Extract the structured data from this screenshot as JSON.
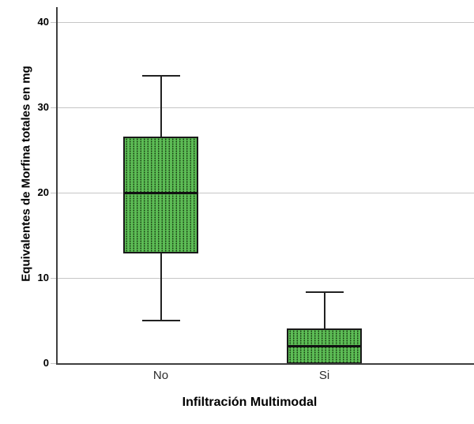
{
  "chart_data": {
    "type": "boxplot",
    "title": "",
    "xlabel": "Infiltración Multimodal",
    "ylabel": "Equivalentes de Morfina totales en mg",
    "categories": [
      "No",
      "Si"
    ],
    "yticks": [
      0,
      10,
      20,
      30,
      40
    ],
    "ylim": [
      0,
      42
    ],
    "grid": "horizontal-gridlines-on",
    "legend": "none",
    "boxes": [
      {
        "category": "No",
        "min": 5,
        "q1": 13,
        "median": 20,
        "q3": 26.5,
        "max": 33.7
      },
      {
        "category": "Si",
        "min": 0,
        "q1": 0,
        "median": 2,
        "q3": 4,
        "max": 8.3
      }
    ],
    "colors": {
      "box_fill": "#5cbc55",
      "box_dot": "#16380f",
      "box_border": "#1a1a1a",
      "median": "#111111",
      "whisker": "#222222",
      "axis": "#404040",
      "gridline": "#c6c6c6",
      "tick_label": "#000000",
      "text": "#000000"
    }
  }
}
